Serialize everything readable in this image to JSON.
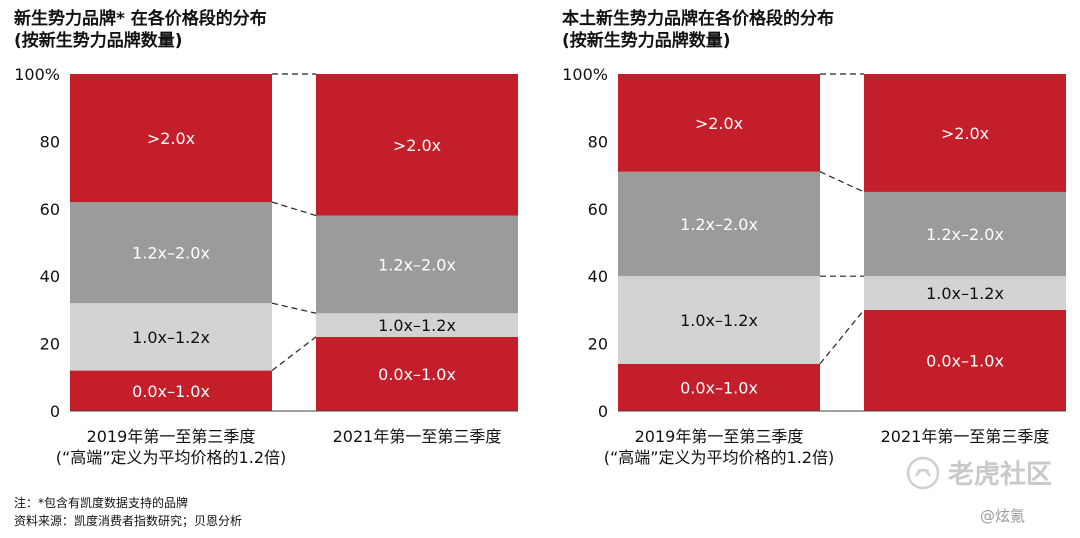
{
  "chart_data": [
    {
      "type": "bar",
      "stacked": true,
      "title": "新生势力品牌* 在各价格段的分布",
      "subtitle": "(按新生势力品牌数量)",
      "categories": [
        "2019年第一至第三季度",
        "2021年第一至第三季度"
      ],
      "xlabel_note": "(“高端”定义为平均价格的1.2倍)",
      "ylim": [
        0,
        100
      ],
      "yticks": [
        "0",
        "20",
        "40",
        "60",
        "80",
        "100%"
      ],
      "series": [
        {
          "name": "0.0x–1.0x",
          "values": [
            12,
            22
          ],
          "color": "#c41e2a",
          "text_color": "#ffffff"
        },
        {
          "name": "1.0x–1.2x",
          "values": [
            20,
            7
          ],
          "color": "#d3d3d3",
          "text_color": "#111111"
        },
        {
          "name": "1.2x–2.0x",
          "values": [
            30,
            29
          ],
          "color": "#9b9b9b",
          "text_color": "#ffffff"
        },
        {
          "name": ">2.0x",
          "values": [
            38,
            42
          ],
          "color": "#c41e2a",
          "text_color": "#ffffff"
        }
      ]
    },
    {
      "type": "bar",
      "stacked": true,
      "title": "本土新生势力品牌在各价格段的分布",
      "subtitle": "(按新生势力品牌数量)",
      "categories": [
        "2019年第一至第三季度",
        "2021年第一至第三季度"
      ],
      "xlabel_note": "(“高端”定义为平均价格的1.2倍)",
      "ylim": [
        0,
        100
      ],
      "yticks": [
        "0",
        "20",
        "40",
        "60",
        "80",
        "100%"
      ],
      "series": [
        {
          "name": "0.0x–1.0x",
          "values": [
            14,
            30
          ],
          "color": "#c41e2a",
          "text_color": "#ffffff"
        },
        {
          "name": "1.0x–1.2x",
          "values": [
            26,
            10
          ],
          "color": "#d3d3d3",
          "text_color": "#111111"
        },
        {
          "name": "1.2x–2.0x",
          "values": [
            31,
            25
          ],
          "color": "#9b9b9b",
          "text_color": "#ffffff"
        },
        {
          "name": ">2.0x",
          "values": [
            29,
            35
          ],
          "color": "#c41e2a",
          "text_color": "#ffffff"
        }
      ]
    }
  ],
  "footnotes": {
    "note": "注：*包含有凯度数据支持的品牌",
    "source": "资料来源：凯度消费者指数研究；贝恩分析"
  },
  "watermark": {
    "text": "老虎社区",
    "credit": "@炫氪"
  }
}
